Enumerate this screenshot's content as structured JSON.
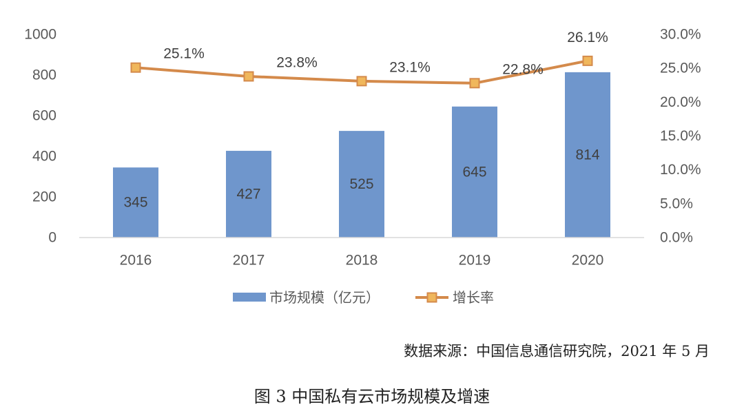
{
  "chart_data": {
    "type": "bar+line",
    "categories": [
      "2016",
      "2017",
      "2018",
      "2019",
      "2020"
    ],
    "series": [
      {
        "name": "市场规模（亿元）",
        "type": "bar",
        "axis": "left",
        "values": [
          345,
          427,
          525,
          645,
          814
        ],
        "labels": [
          "345",
          "427",
          "525",
          "645",
          "814"
        ],
        "color": "#6f96cc"
      },
      {
        "name": "增长率",
        "type": "line",
        "axis": "right",
        "values": [
          25.1,
          23.8,
          23.1,
          22.8,
          26.1
        ],
        "labels": [
          "25.1%",
          "23.8%",
          "23.1%",
          "22.8%",
          "26.1%"
        ],
        "color": "#d48a4b",
        "marker_color": "#f0b75c"
      }
    ],
    "y_left": {
      "ylim": [
        0,
        1000
      ],
      "ticks": [
        "0",
        "200",
        "400",
        "600",
        "800",
        "1000"
      ]
    },
    "y_right": {
      "ylim": [
        0,
        30
      ],
      "ticks": [
        "0.0%",
        "5.0%",
        "10.0%",
        "15.0%",
        "20.0%",
        "25.0%",
        "30.0%"
      ]
    },
    "grid": false,
    "legend_position": "bottom"
  },
  "source_text": "数据来源：中国信息通信研究院，2021 年 5 月",
  "caption": "图 3  中国私有云市场规模及增速"
}
